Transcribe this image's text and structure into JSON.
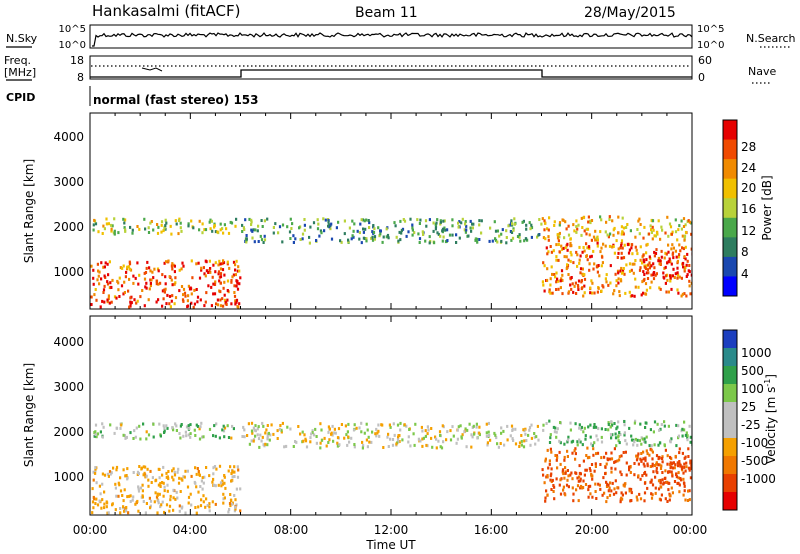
{
  "header": {
    "station": "Hankasalmi (fitACF)",
    "beam": "Beam 11",
    "date": "28/May/2015"
  },
  "nsky_panel": {
    "left_label": "N.Sky",
    "left_ticks": [
      "10^5",
      "10^0"
    ],
    "right_label": "N.Search",
    "right_ticks": [
      "10^5",
      "10^0"
    ]
  },
  "freq_panel": {
    "left_label_1": "Freq.",
    "left_label_2": "[MHz]",
    "left_ticks": [
      "18",
      "8"
    ],
    "right_label": "Nave",
    "right_ticks": [
      "60",
      "0"
    ]
  },
  "cpid": {
    "label": "CPID",
    "text": "normal (fast stereo) 153"
  },
  "power_panel": {
    "ylabel": "Slant Range [km]",
    "yticks": [
      "4000",
      "3000",
      "2000",
      "1000"
    ],
    "colorbar_label": "Power [dB]",
    "colorbar_ticks": [
      "28",
      "24",
      "20",
      "16",
      "12",
      "8",
      "4"
    ],
    "colors": [
      "#0000ff",
      "#1a48b0",
      "#2e7d5f",
      "#4aa84a",
      "#b8d23a",
      "#f0c000",
      "#f08a00",
      "#f04a00",
      "#e60000"
    ]
  },
  "velocity_panel": {
    "ylabel": "Slant Range [km]",
    "yticks": [
      "4000",
      "3000",
      "2000",
      "1000"
    ],
    "colorbar_label": "Velocity [m s",
    "colorbar_label_sup": "-1",
    "colorbar_ticks": [
      "1000",
      "500",
      "100",
      "25",
      "-25",
      "-100",
      "-500",
      "-1000"
    ],
    "colors": [
      "#1c3fbf",
      "#2a8a8a",
      "#2fa04a",
      "#7cc84a",
      "#c0c0c0",
      "#c0c0c0",
      "#f5a000",
      "#f07800",
      "#e84000",
      "#e60000"
    ]
  },
  "xaxis": {
    "ticks": [
      "00:00",
      "04:00",
      "08:00",
      "12:00",
      "16:00",
      "20:00",
      "00:00"
    ],
    "label": "Time UT"
  },
  "chart_data": {
    "type": "heatmap",
    "x_range_hours": [
      0,
      24
    ],
    "y_range_km": [
      180,
      4600
    ],
    "freq_mhz_segments": [
      {
        "start": 0,
        "end": 6,
        "freq": 10
      },
      {
        "start": 6,
        "end": 18,
        "freq": 12
      },
      {
        "start": 18,
        "end": 24,
        "freq": 10
      }
    ],
    "scatter_bands": [
      {
        "x": [
          0,
          6
        ],
        "y": [
          1900,
          2250
        ],
        "power": 14,
        "velocity": 30
      },
      {
        "x": [
          6,
          18
        ],
        "y": [
          1700,
          2250
        ],
        "power": 10,
        "velocity": 0
      },
      {
        "x": [
          18,
          24
        ],
        "y": [
          1750,
          2300
        ],
        "power": 18,
        "velocity": 60
      },
      {
        "x": [
          0,
          6
        ],
        "y": [
          250,
          1300
        ],
        "power": 24,
        "velocity": -50
      },
      {
        "x": [
          18,
          24
        ],
        "y": [
          500,
          1700
        ],
        "power": 22,
        "velocity": -300
      },
      {
        "x": [
          22,
          24
        ],
        "y": [
          900,
          1500
        ],
        "power": 28,
        "velocity": -500
      }
    ]
  }
}
